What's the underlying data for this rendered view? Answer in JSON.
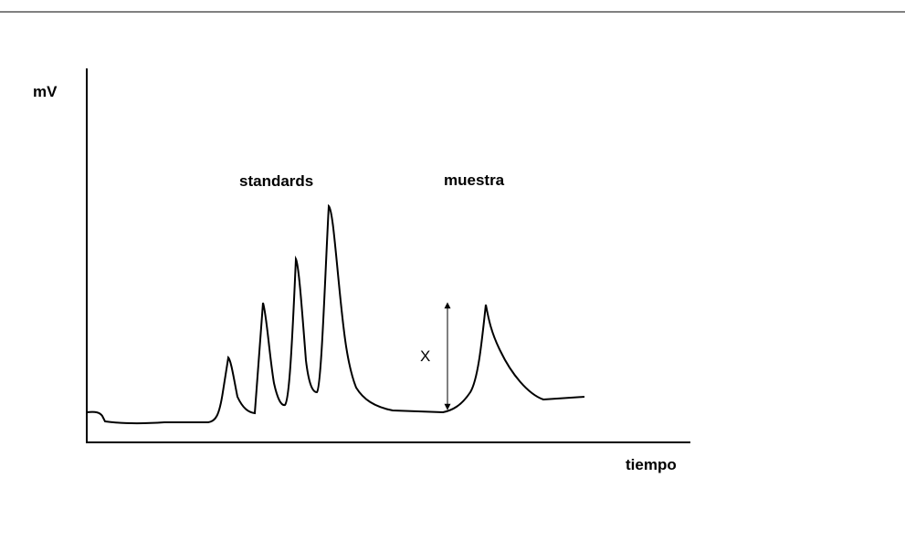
{
  "axes": {
    "y_label": "mV",
    "x_label": "tiempo"
  },
  "annotations": {
    "standards": "standards",
    "sample": "muestra",
    "height": "X"
  }
}
